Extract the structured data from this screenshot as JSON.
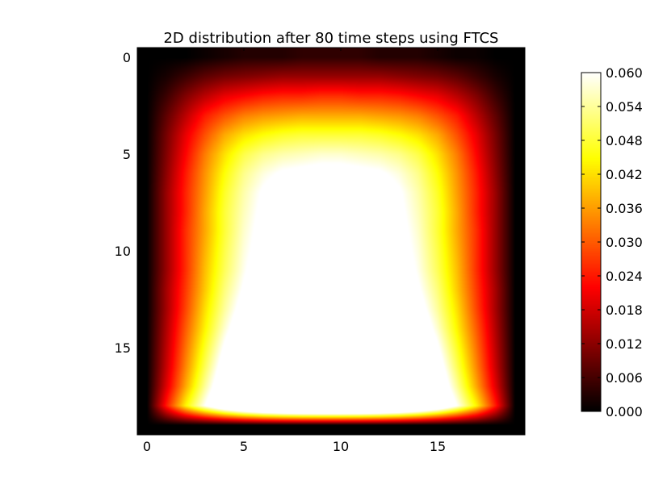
{
  "chart_data": {
    "type": "heatmap",
    "title": "2D distribution after 80 time steps using FTCS",
    "xlabel": "",
    "ylabel": "",
    "grid": false,
    "colormap": "hot",
    "interpolation": "smooth",
    "xlim": [
      -0.5,
      19.5
    ],
    "ylim": [
      19.5,
      -0.5
    ],
    "x_ticks": [
      0,
      5,
      10,
      15
    ],
    "y_ticks": [
      0,
      5,
      10,
      15
    ],
    "colorbar": {
      "vmin": 0.0,
      "vmax": 0.06,
      "ticks": [
        "0.000",
        "0.006",
        "0.012",
        "0.018",
        "0.024",
        "0.030",
        "0.036",
        "0.042",
        "0.048",
        "0.054",
        "0.060"
      ]
    },
    "grid_size": [
      20,
      20
    ],
    "values": [
      [
        0.0,
        0.0,
        0.0,
        0.001,
        0.002,
        0.003,
        0.003,
        0.003,
        0.004,
        0.004,
        0.004,
        0.004,
        0.003,
        0.003,
        0.003,
        0.002,
        0.001,
        0.001,
        0.0,
        0.0
      ],
      [
        0.0,
        0.002,
        0.005,
        0.008,
        0.01,
        0.011,
        0.012,
        0.013,
        0.013,
        0.013,
        0.013,
        0.013,
        0.013,
        0.012,
        0.011,
        0.01,
        0.008,
        0.005,
        0.002,
        0.0
      ],
      [
        0.0,
        0.005,
        0.011,
        0.016,
        0.02,
        0.022,
        0.024,
        0.025,
        0.025,
        0.026,
        0.026,
        0.025,
        0.025,
        0.024,
        0.022,
        0.02,
        0.016,
        0.011,
        0.005,
        0.0
      ],
      [
        0.0,
        0.008,
        0.016,
        0.024,
        0.029,
        0.033,
        0.035,
        0.036,
        0.037,
        0.037,
        0.037,
        0.037,
        0.036,
        0.035,
        0.033,
        0.029,
        0.024,
        0.016,
        0.008,
        0.0
      ],
      [
        0.0,
        0.01,
        0.02,
        0.029,
        0.037,
        0.042,
        0.045,
        0.047,
        0.048,
        0.048,
        0.048,
        0.048,
        0.047,
        0.045,
        0.042,
        0.037,
        0.029,
        0.02,
        0.01,
        0.0
      ],
      [
        0.0,
        0.011,
        0.022,
        0.033,
        0.042,
        0.049,
        0.053,
        0.055,
        0.056,
        0.057,
        0.057,
        0.056,
        0.055,
        0.053,
        0.049,
        0.042,
        0.033,
        0.022,
        0.011,
        0.0
      ],
      [
        0.0,
        0.012,
        0.024,
        0.035,
        0.045,
        0.053,
        0.058,
        0.061,
        0.062,
        0.063,
        0.063,
        0.062,
        0.061,
        0.058,
        0.053,
        0.045,
        0.035,
        0.024,
        0.012,
        0.0
      ],
      [
        0.0,
        0.013,
        0.025,
        0.036,
        0.047,
        0.055,
        0.061,
        0.065,
        0.067,
        0.068,
        0.068,
        0.067,
        0.065,
        0.061,
        0.055,
        0.047,
        0.036,
        0.025,
        0.013,
        0.0
      ],
      [
        0.0,
        0.013,
        0.025,
        0.037,
        0.048,
        0.056,
        0.062,
        0.067,
        0.07,
        0.071,
        0.071,
        0.07,
        0.067,
        0.062,
        0.056,
        0.048,
        0.037,
        0.025,
        0.013,
        0.0
      ],
      [
        0.0,
        0.013,
        0.026,
        0.037,
        0.048,
        0.057,
        0.063,
        0.068,
        0.071,
        0.073,
        0.073,
        0.071,
        0.068,
        0.063,
        0.057,
        0.048,
        0.037,
        0.026,
        0.013,
        0.0
      ],
      [
        0.0,
        0.013,
        0.026,
        0.038,
        0.049,
        0.058,
        0.064,
        0.069,
        0.072,
        0.074,
        0.074,
        0.072,
        0.069,
        0.064,
        0.058,
        0.049,
        0.038,
        0.026,
        0.013,
        0.0
      ],
      [
        0.0,
        0.013,
        0.026,
        0.039,
        0.05,
        0.059,
        0.066,
        0.07,
        0.073,
        0.075,
        0.075,
        0.073,
        0.07,
        0.066,
        0.059,
        0.05,
        0.039,
        0.026,
        0.013,
        0.0
      ],
      [
        0.0,
        0.014,
        0.027,
        0.04,
        0.052,
        0.061,
        0.068,
        0.072,
        0.075,
        0.076,
        0.076,
        0.075,
        0.072,
        0.068,
        0.061,
        0.052,
        0.04,
        0.027,
        0.014,
        0.0
      ],
      [
        0.0,
        0.014,
        0.028,
        0.042,
        0.054,
        0.064,
        0.071,
        0.075,
        0.078,
        0.079,
        0.079,
        0.078,
        0.075,
        0.071,
        0.064,
        0.054,
        0.042,
        0.028,
        0.014,
        0.0
      ],
      [
        0.0,
        0.015,
        0.03,
        0.044,
        0.057,
        0.068,
        0.075,
        0.08,
        0.082,
        0.083,
        0.083,
        0.082,
        0.08,
        0.075,
        0.068,
        0.057,
        0.044,
        0.03,
        0.015,
        0.0
      ],
      [
        0.0,
        0.016,
        0.032,
        0.047,
        0.061,
        0.072,
        0.08,
        0.085,
        0.087,
        0.088,
        0.088,
        0.087,
        0.085,
        0.08,
        0.072,
        0.061,
        0.047,
        0.032,
        0.016,
        0.0
      ],
      [
        0.0,
        0.017,
        0.034,
        0.05,
        0.065,
        0.077,
        0.085,
        0.09,
        0.093,
        0.094,
        0.094,
        0.093,
        0.09,
        0.085,
        0.077,
        0.065,
        0.05,
        0.034,
        0.017,
        0.0
      ],
      [
        0.0,
        0.019,
        0.037,
        0.054,
        0.069,
        0.081,
        0.09,
        0.095,
        0.098,
        0.1,
        0.1,
        0.098,
        0.095,
        0.09,
        0.081,
        0.069,
        0.054,
        0.037,
        0.019,
        0.0
      ],
      [
        0.0,
        0.024,
        0.044,
        0.06,
        0.074,
        0.085,
        0.093,
        0.098,
        0.101,
        0.102,
        0.102,
        0.101,
        0.098,
        0.093,
        0.085,
        0.074,
        0.06,
        0.044,
        0.024,
        0.0
      ],
      [
        0.0,
        0.0,
        0.0,
        0.0,
        0.0,
        0.0,
        0.0,
        0.0,
        0.0,
        0.0,
        0.0,
        0.0,
        0.0,
        0.0,
        0.0,
        0.0,
        0.0,
        0.0,
        0.0,
        0.0
      ]
    ]
  }
}
